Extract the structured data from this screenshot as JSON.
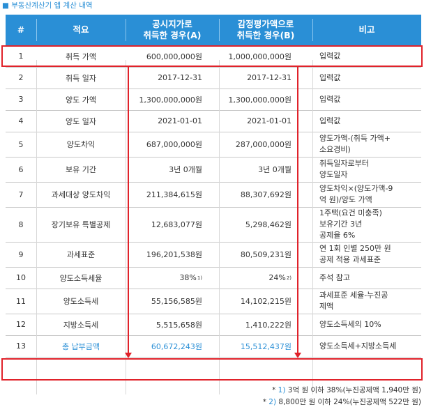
{
  "caption": "■ 부동산계산기 앱 계산 내역",
  "headers": {
    "num": "#",
    "item": "적요",
    "a_line1": "공시지가로",
    "a_line2": "취득한 경우(A)",
    "b_line1": "감정평가액으로",
    "b_line2": "취득한 경우(B)",
    "remark": "비고"
  },
  "rows": [
    {
      "n": "1",
      "item": "취득 가액",
      "a": "600,000,000원",
      "b": "1,000,000,000원",
      "r1": "입력값",
      "r2": "",
      "r3": ""
    },
    {
      "n": "2",
      "item": "취득 일자",
      "a": "2017-12-31",
      "b": "2017-12-31",
      "r1": "입력값",
      "r2": "",
      "r3": ""
    },
    {
      "n": "3",
      "item": "양도 가액",
      "a": "1,300,000,000원",
      "b": "1,300,000,000원",
      "r1": "입력값",
      "r2": "",
      "r3": ""
    },
    {
      "n": "4",
      "item": "양도 일자",
      "a": "2021-01-01",
      "b": "2021-01-01",
      "r1": "입력값",
      "r2": "",
      "r3": ""
    },
    {
      "n": "5",
      "item": "양도차익",
      "a": "687,000,000원",
      "b": "287,000,000원",
      "r1": "양도가액-(취득 가액+",
      "r2": "소요경비)",
      "r3": ""
    },
    {
      "n": "6",
      "item": "보유 기간",
      "a": "3년 0개월",
      "b": "3년 0개월",
      "r1": "취득일자로부터",
      "r2": "양도일자",
      "r3": ""
    },
    {
      "n": "7",
      "item": "과세대상 양도차익",
      "a": "211,384,615원",
      "b": "88,307,692원",
      "r1": "양도차익×(양도가액-9",
      "r2": "억 원)/양도 가액",
      "r3": ""
    },
    {
      "n": "8",
      "item": "장기보유 특별공제",
      "a": "12,683,077원",
      "b": "5,298,462원",
      "r1": "1주택(요건 미충족)",
      "r2": "보유기간 3년",
      "r3": "공제율 6%"
    },
    {
      "n": "9",
      "item": "과세표준",
      "a": "196,201,538원",
      "b": "80,509,231원",
      "r1": "연 1회 인별 250만 원",
      "r2": "공제 적용 과세표준",
      "r3": ""
    },
    {
      "n": "10",
      "item": "양도소득세율",
      "a": "38%",
      "b": "24%",
      "r1": "주석 참고",
      "r2": "",
      "r3": ""
    },
    {
      "n": "11",
      "item": "양도소득세",
      "a": "55,156,585원",
      "b": "14,102,215원",
      "r1": "과세표준 세율-누진공",
      "r2": "제액",
      "r3": ""
    },
    {
      "n": "12",
      "item": "지방소득세",
      "a": "5,515,658원",
      "b": "1,410,222원",
      "r1": "양도소득세의 10%",
      "r2": "",
      "r3": ""
    },
    {
      "n": "13",
      "item": "총 납부금액",
      "a": "60,672,243원",
      "b": "15,512,437원",
      "r1": "양도소득세+지방소득세",
      "r2": "",
      "r3": ""
    }
  ],
  "sup_a": "1)",
  "sup_b": "2)",
  "notes": [
    {
      "prefix": "* ",
      "num": "1)",
      "text": " 3억 원 이하 38%(누진공제액 1,940만 원)"
    },
    {
      "prefix": "* ",
      "num": "2)",
      "text": " 8,800만 원 이하 24%(누진공제액 522만 원)"
    }
  ],
  "colors": {
    "header": "#2a8fd6",
    "highlight": "#e0222a",
    "total_text": "#2a8fd6"
  }
}
